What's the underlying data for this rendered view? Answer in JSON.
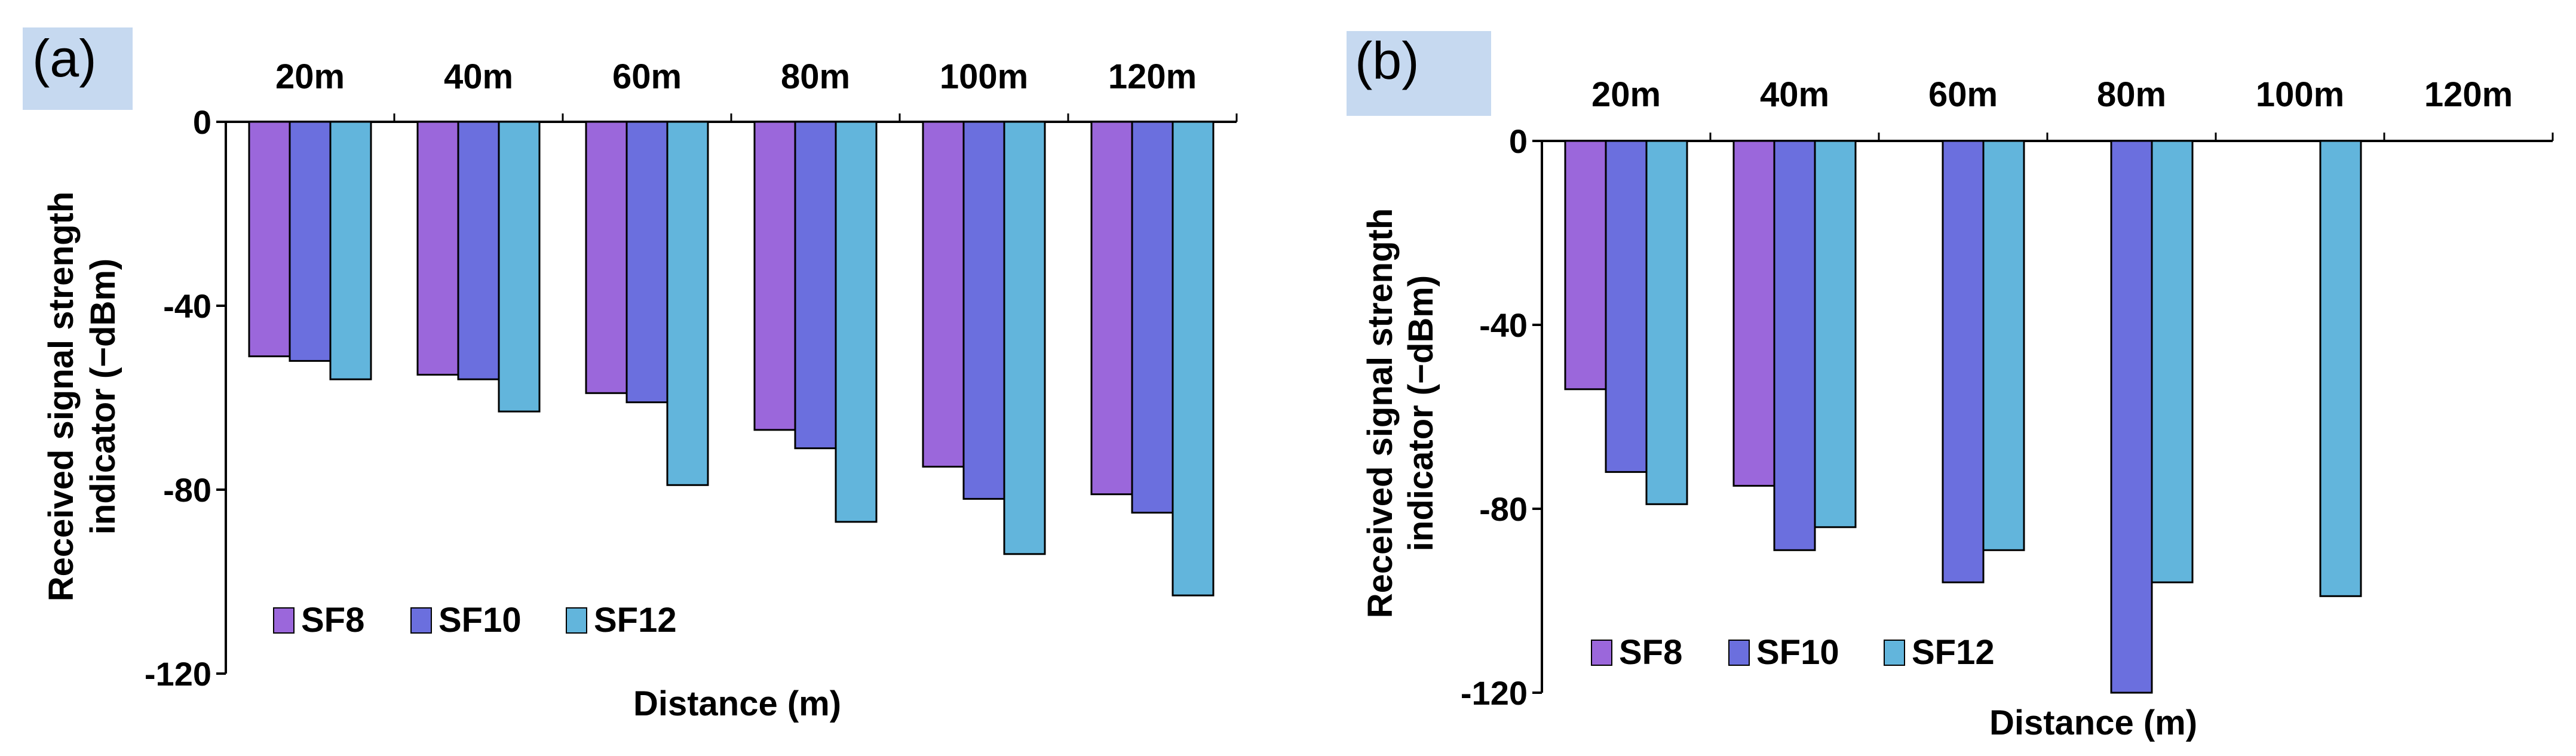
{
  "chart_data": [
    {
      "panel_label": "(a)",
      "type": "bar",
      "categories": [
        "20m",
        "40m",
        "60m",
        "80m",
        "100m",
        "120m"
      ],
      "series": [
        {
          "name": "SF8",
          "color": "#9b67db",
          "values": [
            -51,
            -55,
            -59,
            -67,
            -75,
            -81
          ]
        },
        {
          "name": "SF10",
          "color": "#6b6fde",
          "values": [
            -52,
            -56,
            -61,
            -71,
            -82,
            -85
          ]
        },
        {
          "name": "SF12",
          "color": "#62b5dc",
          "values": [
            -56,
            -63,
            -79,
            -87,
            -94,
            -103
          ]
        }
      ],
      "yticks": [
        "0",
        "-40",
        "-80",
        "-120"
      ],
      "ylim": [
        -120,
        0
      ],
      "xlabel": "Distance (m)",
      "ylabel_line1": "Received signal strength",
      "ylabel_line2": "indicator (−dBm)",
      "legend": [
        "SF8",
        "SF10",
        "SF12"
      ],
      "legend_position": "bottom-left"
    },
    {
      "panel_label": "(b)",
      "type": "bar",
      "categories": [
        "20m",
        "40m",
        "60m",
        "80m",
        "100m",
        "120m"
      ],
      "series": [
        {
          "name": "SF8",
          "color": "#9b67db",
          "values": [
            -54,
            -75,
            null,
            null,
            null,
            null
          ]
        },
        {
          "name": "SF10",
          "color": "#6b6fde",
          "values": [
            -72,
            -89,
            -96,
            -120,
            null,
            null
          ]
        },
        {
          "name": "SF12",
          "color": "#62b5dc",
          "values": [
            -79,
            -84,
            -89,
            -96,
            -99,
            null
          ]
        }
      ],
      "yticks": [
        "0",
        "-40",
        "-80",
        "-120"
      ],
      "ylim": [
        -120,
        0
      ],
      "xlabel": "Distance (m)",
      "ylabel_line1": "Received signal strength",
      "ylabel_line2": "indicator (−dBm)",
      "legend": [
        "SF8",
        "SF10",
        "SF12"
      ],
      "legend_position": "bottom-left"
    }
  ]
}
